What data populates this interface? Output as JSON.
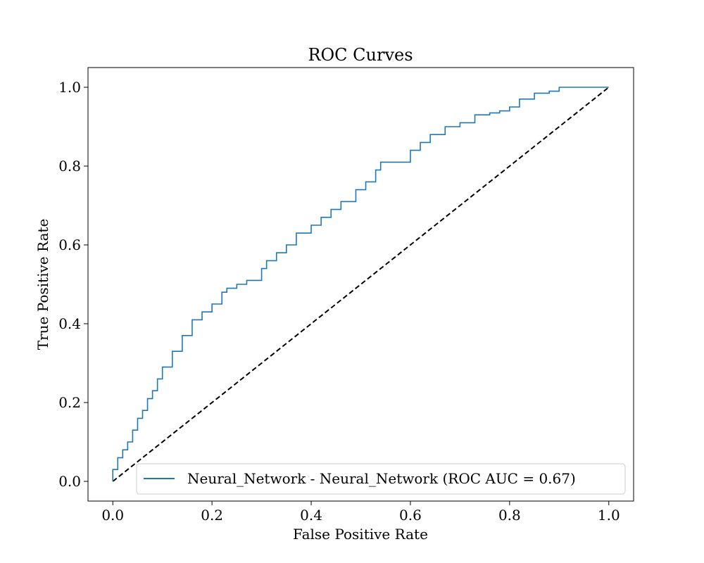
{
  "chart_data": {
    "type": "line",
    "title": "ROC Curves",
    "xlabel": "False Positive Rate",
    "ylabel": "True Positive Rate",
    "xlim": [
      -0.05,
      1.05
    ],
    "ylim": [
      -0.05,
      1.05
    ],
    "x_ticks": [
      "0.0",
      "0.2",
      "0.4",
      "0.6",
      "0.8",
      "1.0"
    ],
    "y_ticks": [
      "0.0",
      "0.2",
      "0.4",
      "0.6",
      "0.8",
      "1.0"
    ],
    "grid": false,
    "legend_position": "lower-right",
    "series": [
      {
        "name": "Neural_Network - Neural_Network (ROC AUC = 0.67)",
        "color": "#1f77b4",
        "style": "solid",
        "x": [
          0.0,
          0.01,
          0.02,
          0.03,
          0.04,
          0.05,
          0.06,
          0.07,
          0.08,
          0.09,
          0.1,
          0.12,
          0.14,
          0.16,
          0.18,
          0.2,
          0.22,
          0.23,
          0.25,
          0.27,
          0.3,
          0.31,
          0.33,
          0.35,
          0.37,
          0.4,
          0.42,
          0.44,
          0.46,
          0.49,
          0.51,
          0.53,
          0.54,
          0.57,
          0.6,
          0.62,
          0.64,
          0.67,
          0.7,
          0.73,
          0.76,
          0.78,
          0.8,
          0.82,
          0.85,
          0.88,
          0.9,
          0.93,
          0.96,
          0.98,
          1.0
        ],
        "y": [
          0.0,
          0.03,
          0.06,
          0.08,
          0.1,
          0.13,
          0.16,
          0.18,
          0.21,
          0.23,
          0.26,
          0.29,
          0.33,
          0.37,
          0.41,
          0.43,
          0.45,
          0.48,
          0.49,
          0.5,
          0.51,
          0.54,
          0.56,
          0.58,
          0.6,
          0.63,
          0.65,
          0.67,
          0.69,
          0.71,
          0.74,
          0.76,
          0.79,
          0.81,
          0.81,
          0.84,
          0.86,
          0.88,
          0.9,
          0.91,
          0.93,
          0.935,
          0.94,
          0.95,
          0.97,
          0.985,
          0.99,
          1.0,
          1.0,
          1.0,
          1.0
        ]
      },
      {
        "name": "",
        "color": "#000000",
        "style": "dashed",
        "x": [
          0.0,
          1.0
        ],
        "y": [
          0.0,
          1.0
        ]
      }
    ]
  }
}
